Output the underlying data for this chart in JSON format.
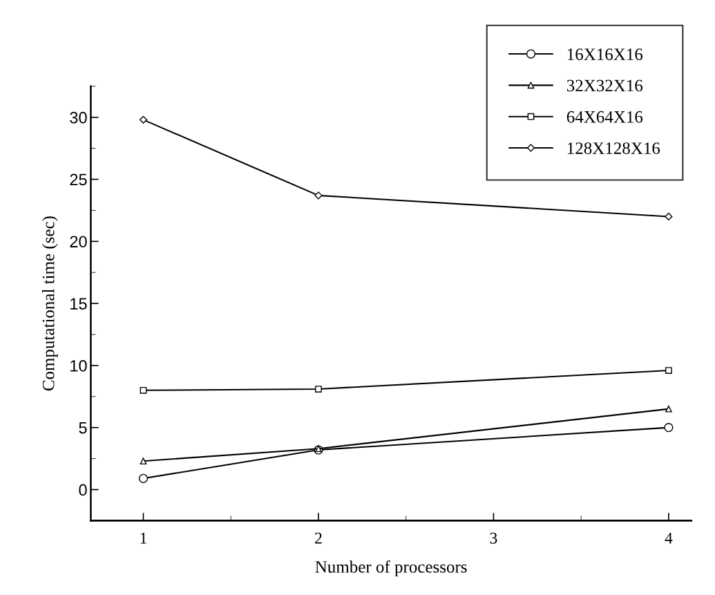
{
  "chart_data": {
    "type": "line",
    "xlabel": "Number of processors",
    "ylabel": "Computational time (sec)",
    "x": [
      1,
      2,
      4
    ],
    "series": [
      {
        "name": "16X16X16",
        "color": "#000000",
        "marker": "circle",
        "values": [
          0.9,
          3.2,
          5.0
        ]
      },
      {
        "name": "32X32X16",
        "color": "#000000",
        "marker": "triangle",
        "values": [
          2.3,
          3.3,
          6.5
        ]
      },
      {
        "name": "64X64X16",
        "color": "#000000",
        "marker": "square",
        "values": [
          8.0,
          8.1,
          9.6
        ]
      },
      {
        "name": "128X128X16",
        "color": "#000000",
        "marker": "diamond",
        "values": [
          29.8,
          23.7,
          22.0
        ]
      }
    ],
    "xlim": [
      0.7,
      4.13
    ],
    "xticks": [
      1,
      2,
      3,
      4
    ],
    "ylim": [
      -2.5,
      32.5
    ],
    "yticks": [
      0,
      5,
      10,
      15,
      20,
      25,
      30
    ],
    "grid": false,
    "legend": "top right",
    "line_style": "solid"
  }
}
